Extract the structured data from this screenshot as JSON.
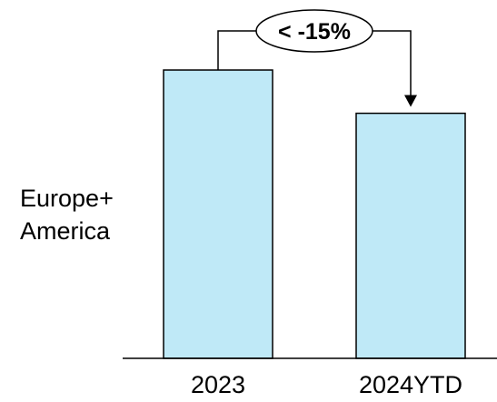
{
  "chart_data": {
    "type": "bar",
    "categories": [
      "2023",
      "2024YTD"
    ],
    "values": [
      100,
      85
    ],
    "title": "",
    "xlabel": "",
    "ylabel": "Europe+ America",
    "ylabel_lines": [
      "Europe+",
      "America"
    ],
    "ylim": [
      0,
      100
    ],
    "grid": false,
    "legend": "none",
    "annotation": {
      "text": "< -15%",
      "from_category": "2023",
      "to_category": "2024YTD"
    },
    "colors": {
      "bar_fill": "#bfe9f7",
      "bar_stroke": "#000000",
      "axis": "#000000",
      "text": "#000000"
    }
  }
}
